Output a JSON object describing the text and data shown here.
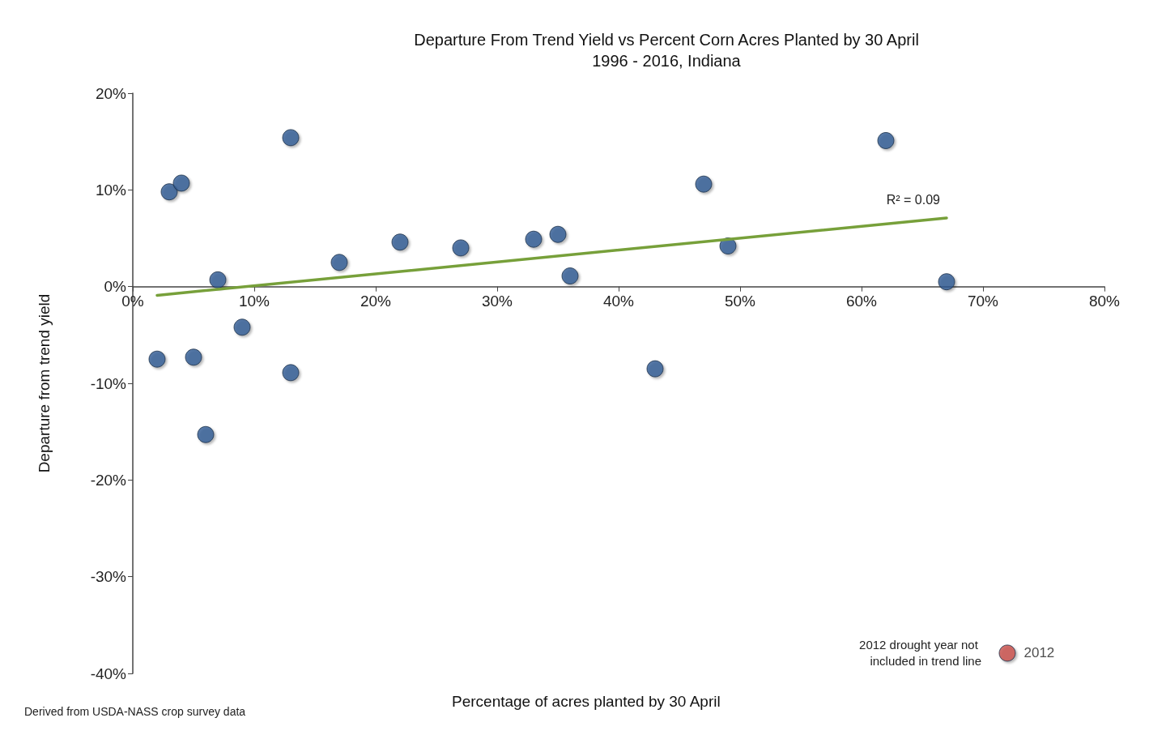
{
  "chart_data": {
    "type": "scatter",
    "title": "Departure From Trend Yield vs Percent Corn Acres Planted by 30 April",
    "subtitle": "1996 - 2016, Indiana",
    "xlabel": "Percentage of acres planted by 30 April",
    "ylabel": "Departure from trend yield",
    "xlim": [
      0,
      80
    ],
    "xticks": [
      {
        "value": 0,
        "label": "0%"
      },
      {
        "value": 10,
        "label": "10%"
      },
      {
        "value": 20,
        "label": "20%"
      },
      {
        "value": 30,
        "label": "30%"
      },
      {
        "value": 40,
        "label": "40%"
      },
      {
        "value": 50,
        "label": "50%"
      },
      {
        "value": 60,
        "label": "60%"
      },
      {
        "value": 70,
        "label": "70%"
      },
      {
        "value": 80,
        "label": "80%"
      }
    ],
    "ylim": [
      -40,
      20
    ],
    "yticks": [
      {
        "value": -40,
        "label": "-40%"
      },
      {
        "value": -30,
        "label": "-30%"
      },
      {
        "value": -20,
        "label": "-20%"
      },
      {
        "value": -10,
        "label": "-10%"
      },
      {
        "value": 0,
        "label": "0%"
      },
      {
        "value": 10,
        "label": "10%"
      },
      {
        "value": 20,
        "label": "20%"
      }
    ],
    "grid": false,
    "legend": false,
    "marker": "circle",
    "series": [
      {
        "type": "scatter",
        "color": "#2e5b94",
        "x": [
          2,
          3,
          4,
          5,
          6,
          7,
          9,
          13,
          13,
          17,
          22,
          27,
          33,
          35,
          36,
          43,
          47,
          49,
          62,
          67
        ],
        "values": [
          -7.5,
          9.8,
          10.7,
          -7.3,
          -15.3,
          0.7,
          -4.2,
          15.4,
          -8.9,
          2.5,
          4.6,
          4.0,
          4.9,
          5.4,
          1.1,
          -8.5,
          10.6,
          4.2,
          15.1,
          0.5
        ]
      },
      {
        "type": "line",
        "color": "#77a03a",
        "marker": "none",
        "x": [
          2,
          67
        ],
        "values": [
          -0.9,
          7.1
        ]
      },
      {
        "type": "scatter",
        "name": "2012",
        "color": "#c9504a",
        "x": [
          72
        ],
        "values": [
          -37.9
        ]
      }
    ],
    "annotations": [
      {
        "text": "R² = 0.09",
        "x": 67,
        "y": 7.1
      },
      {
        "text": "2012 drought year not included in trend line",
        "x": 72,
        "y": -37.9
      },
      "Derived from USDA-NASS crop survey data"
    ]
  }
}
